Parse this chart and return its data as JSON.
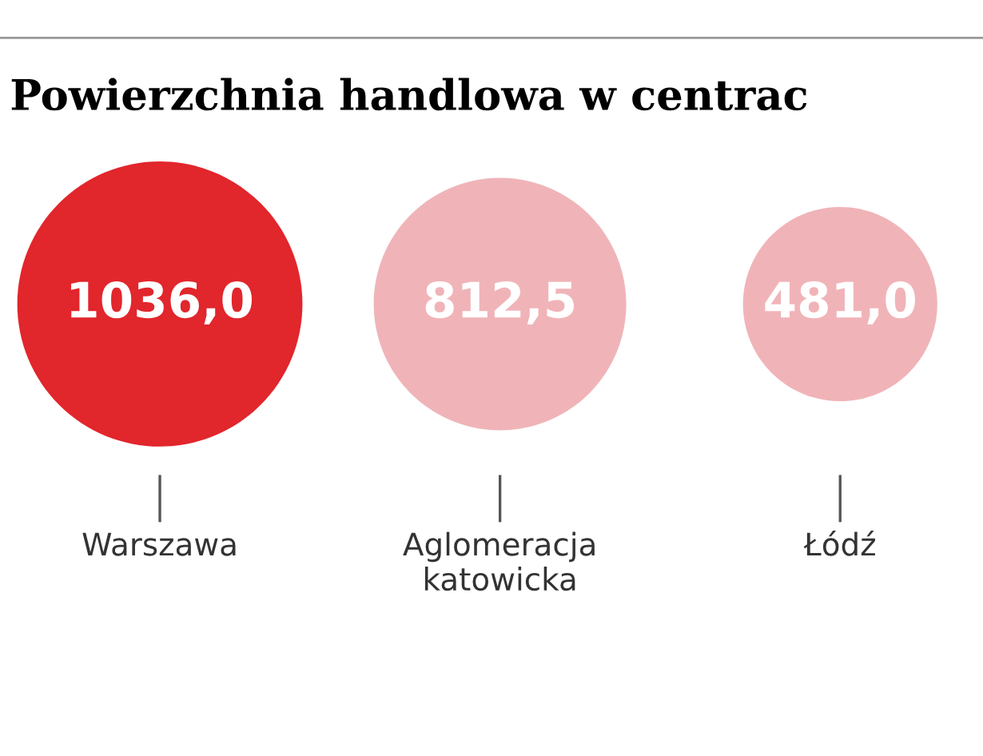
{
  "chart_data": {
    "type": "other",
    "title": "Powierzchnia handlowa w centrac",
    "categories": [
      "Warszawa",
      "Aglomeracja\nkatowicka",
      "Łódź"
    ],
    "values": [
      1036.0,
      812.5,
      481.0
    ],
    "value_labels": [
      "1036,0",
      "812,5",
      "481,0"
    ],
    "colors": [
      "#e1262c",
      "#f0b4b8",
      "#f0b4b8"
    ]
  }
}
